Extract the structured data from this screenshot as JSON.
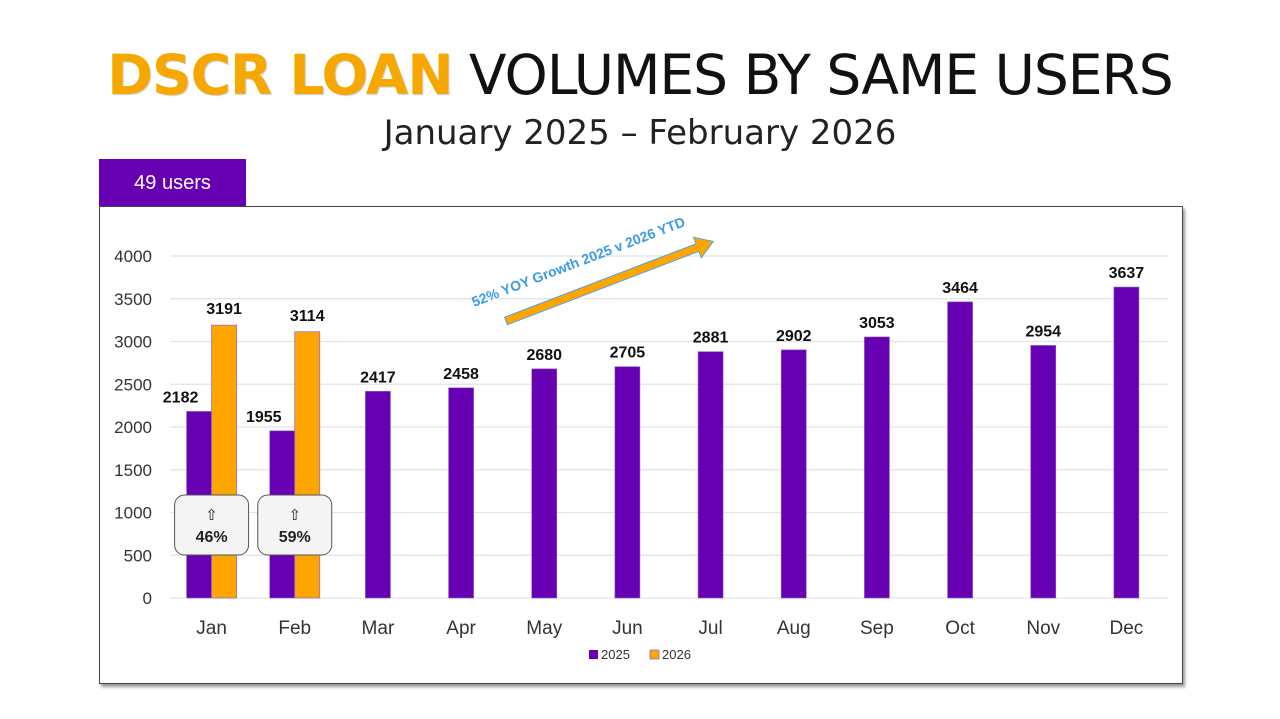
{
  "header": {
    "title_highlight": "DSCR LOAN",
    "title_rest": " VOLUMES BY SAME USERS",
    "subtitle": "January 2025 – February 2026",
    "badge": "49 users"
  },
  "colors": {
    "series_2025": "#6600B2",
    "series_2026": "#FFA500",
    "title_highlight": "#F7A800",
    "annotation_text": "#3B9BE8"
  },
  "annotation": {
    "text": "52% YOY Growth 2025 v 2026 YTD"
  },
  "callouts": [
    {
      "month": "Jan",
      "arrow": "⇧",
      "value": "46%"
    },
    {
      "month": "Feb",
      "arrow": "⇧",
      "value": "59%"
    }
  ],
  "chart_data": {
    "type": "bar",
    "title": "DSCR LOAN VOLUMES BY SAME USERS",
    "subtitle": "January 2025 – February 2026",
    "categories": [
      "Jan",
      "Feb",
      "Mar",
      "Apr",
      "May",
      "Jun",
      "Jul",
      "Aug",
      "Sep",
      "Oct",
      "Nov",
      "Dec"
    ],
    "series": [
      {
        "name": "2025",
        "values": [
          2182,
          1955,
          2417,
          2458,
          2680,
          2705,
          2881,
          2902,
          3053,
          3464,
          2954,
          3637
        ]
      },
      {
        "name": "2026",
        "values": [
          3191,
          3114,
          null,
          null,
          null,
          null,
          null,
          null,
          null,
          null,
          null,
          null
        ]
      }
    ],
    "xlabel": "",
    "ylabel": "",
    "ylim": [
      0,
      4000
    ],
    "yticks": [
      0,
      500,
      1000,
      1500,
      2000,
      2500,
      3000,
      3500,
      4000
    ],
    "grid": true,
    "legend_position": "bottom",
    "annotations": [
      "52% YOY Growth 2025 v 2026 YTD",
      "Jan ⇧ 46%",
      "Feb ⇧ 59%"
    ]
  }
}
